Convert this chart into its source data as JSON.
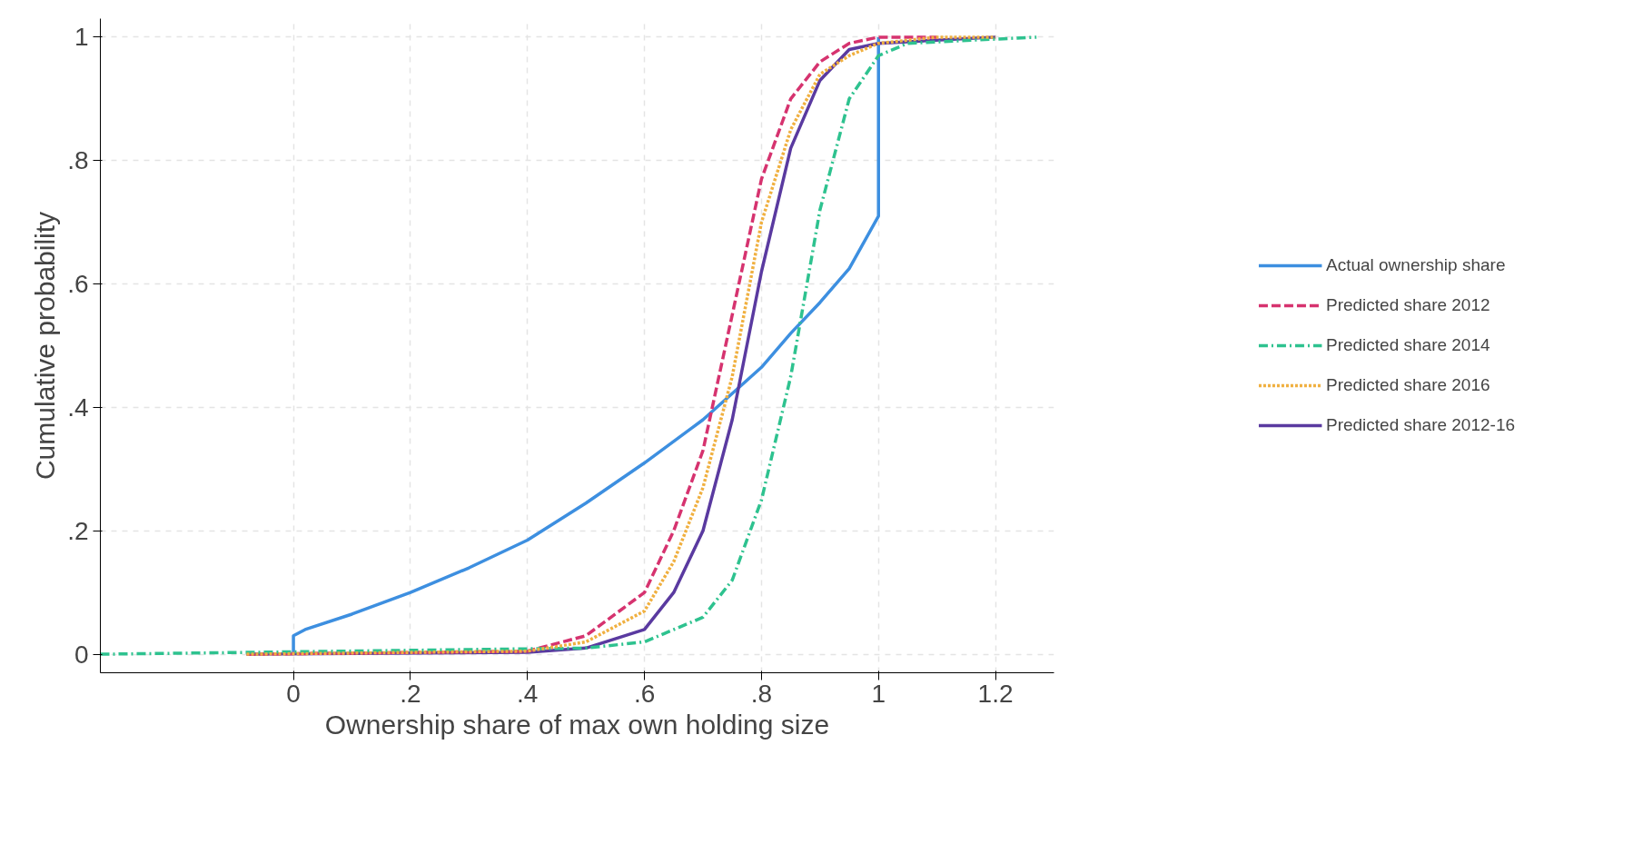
{
  "chart_data": {
    "type": "line",
    "xlabel": "Ownership share of max own holding size",
    "ylabel": "Cumulative probability",
    "xlim": [
      -0.33,
      1.3
    ],
    "ylim": [
      -0.03,
      1.03
    ],
    "xticks": [
      0,
      {
        "value": 0.2,
        "label": ".2"
      },
      {
        "value": 0.4,
        "label": ".4"
      },
      {
        "value": 0.6,
        "label": ".6"
      },
      {
        "value": 0.8,
        "label": ".8"
      },
      1,
      {
        "value": 1.2,
        "label": "1.2"
      }
    ],
    "yticks": [
      0,
      {
        "value": 0.2,
        "label": ".2"
      },
      {
        "value": 0.4,
        "label": ".4"
      },
      {
        "value": 0.6,
        "label": ".6"
      },
      {
        "value": 0.8,
        "label": ".8"
      },
      1
    ],
    "grid": true,
    "legend": "right",
    "marker": "none",
    "series": [
      {
        "name": "Actual ownership share",
        "color": "#3d8fe0",
        "line_style": "solid",
        "x": [
          0,
          0,
          0.02,
          0.1,
          0.2,
          0.3,
          0.4,
          0.5,
          0.6,
          0.7,
          0.8,
          0.85,
          0.9,
          0.95,
          1.0,
          1.0
        ],
        "values": [
          0,
          0.03,
          0.04,
          0.065,
          0.1,
          0.14,
          0.185,
          0.245,
          0.31,
          0.38,
          0.465,
          0.52,
          0.57,
          0.625,
          0.71,
          1.0
        ]
      },
      {
        "name": "Predicted share 2012",
        "color": "#d6336f",
        "line_style": "dashed",
        "x": [
          -0.08,
          0.4,
          0.5,
          0.6,
          0.65,
          0.7,
          0.75,
          0.8,
          0.85,
          0.9,
          0.95,
          1.0,
          1.1
        ],
        "values": [
          0,
          0.005,
          0.03,
          0.1,
          0.2,
          0.33,
          0.55,
          0.77,
          0.9,
          0.96,
          0.99,
          1.0,
          1.0
        ]
      },
      {
        "name": "Predicted share 2014",
        "color": "#2ec28f",
        "line_style": "dashdot",
        "x": [
          -0.33,
          0.5,
          0.6,
          0.7,
          0.75,
          0.8,
          0.85,
          0.9,
          0.95,
          1.0,
          1.05,
          1.27
        ],
        "values": [
          0,
          0.01,
          0.02,
          0.06,
          0.12,
          0.25,
          0.45,
          0.72,
          0.9,
          0.97,
          0.99,
          1.0
        ]
      },
      {
        "name": "Predicted share 2016",
        "color": "#f0b040",
        "line_style": "dotted",
        "x": [
          -0.08,
          0.4,
          0.5,
          0.6,
          0.65,
          0.7,
          0.75,
          0.8,
          0.85,
          0.9,
          0.95,
          1.0,
          1.1,
          1.2
        ],
        "values": [
          0,
          0.005,
          0.02,
          0.07,
          0.15,
          0.27,
          0.45,
          0.7,
          0.85,
          0.94,
          0.97,
          0.99,
          1.0,
          1.0
        ]
      },
      {
        "name": "Predicted share 2012-16",
        "color": "#5a3aa0",
        "line_style": "solid",
        "x": [
          -0.08,
          0.4,
          0.5,
          0.6,
          0.65,
          0.7,
          0.75,
          0.8,
          0.85,
          0.9,
          0.95,
          1.0,
          1.2
        ],
        "values": [
          0,
          0.003,
          0.01,
          0.04,
          0.1,
          0.2,
          0.38,
          0.62,
          0.82,
          0.93,
          0.98,
          0.99,
          1.0
        ]
      }
    ]
  }
}
